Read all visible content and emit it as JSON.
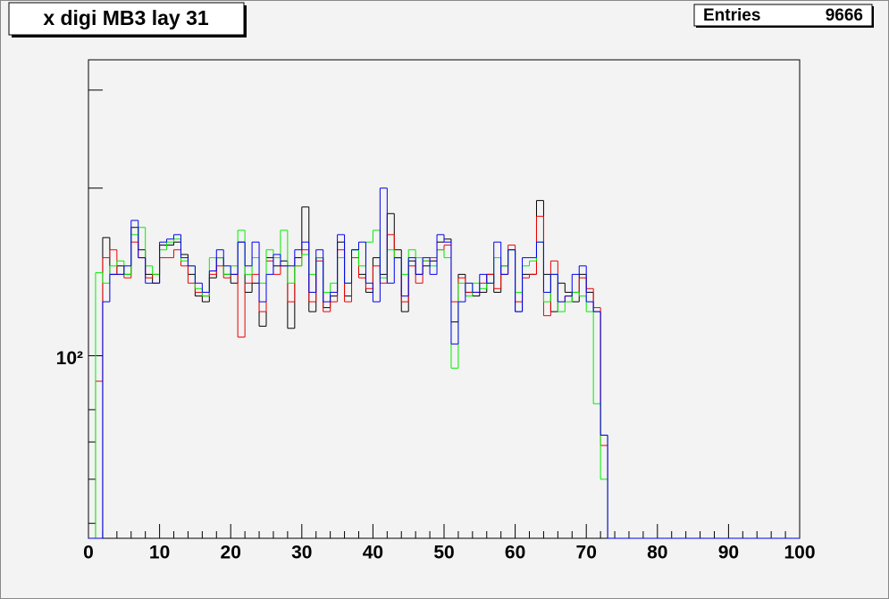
{
  "chart_data": {
    "type": "histogram",
    "title": "x digi MB3 lay 31",
    "stats": {
      "label": "Entries",
      "value": 9666
    },
    "bins": [
      0,
      1,
      2,
      3,
      4,
      5,
      6,
      7,
      8,
      9,
      10,
      11,
      12,
      13,
      14,
      15,
      16,
      17,
      18,
      19,
      20,
      21,
      22,
      23,
      24,
      25,
      26,
      27,
      28,
      29,
      30,
      31,
      32,
      33,
      34,
      35,
      36,
      37,
      38,
      39,
      40,
      41,
      42,
      43,
      44,
      45,
      46,
      47,
      48,
      49,
      50,
      51,
      52,
      53,
      54,
      55,
      56,
      57,
      58,
      59,
      60,
      61,
      62,
      63,
      64,
      65,
      66,
      67,
      68,
      69,
      70,
      71,
      72,
      73,
      74,
      75,
      76,
      77,
      78,
      79,
      80,
      81,
      82,
      83,
      84,
      85,
      86,
      87,
      88,
      89,
      90,
      91,
      92,
      93,
      94,
      95,
      96,
      97,
      98,
      99,
      100
    ],
    "series": [
      {
        "color": "#000000",
        "values": [
          0,
          0,
          163,
          140,
          145,
          140,
          170,
          155,
          140,
          135,
          158,
          158,
          160,
          152,
          140,
          128,
          125,
          138,
          150,
          140,
          135,
          160,
          130,
          135,
          113,
          150,
          145,
          148,
          112,
          150,
          185,
          120,
          150,
          122,
          128,
          160,
          128,
          155,
          140,
          130,
          150,
          140,
          180,
          155,
          120,
          148,
          140,
          145,
          148,
          160,
          162,
          115,
          140,
          130,
          128,
          130,
          140,
          130,
          145,
          155,
          120,
          140,
          140,
          190,
          140,
          120,
          135,
          130,
          125,
          140,
          130,
          120,
          72,
          0,
          0,
          0,
          0,
          0,
          0,
          0,
          0,
          0,
          0,
          0,
          0,
          0,
          0,
          0,
          0,
          0,
          0,
          0,
          0,
          0,
          0,
          0,
          0,
          0,
          0,
          0
        ]
      },
      {
        "color": "#ee0000",
        "values": [
          0,
          90,
          150,
          155,
          140,
          138,
          160,
          150,
          138,
          140,
          150,
          150,
          155,
          145,
          135,
          130,
          128,
          140,
          145,
          138,
          140,
          108,
          135,
          140,
          120,
          148,
          140,
          145,
          125,
          145,
          155,
          125,
          148,
          120,
          125,
          155,
          125,
          150,
          138,
          132,
          145,
          135,
          165,
          150,
          125,
          145,
          135,
          148,
          150,
          155,
          158,
          125,
          138,
          130,
          130,
          135,
          140,
          132,
          140,
          158,
          125,
          138,
          140,
          178,
          118,
          148,
          125,
          128,
          130,
          138,
          132,
          122,
          69,
          0,
          0,
          0,
          0,
          0,
          0,
          0,
          0,
          0,
          0,
          0,
          0,
          0,
          0,
          0,
          0,
          0,
          0,
          0,
          0,
          0,
          0,
          0,
          0,
          0,
          0,
          0
        ]
      },
      {
        "color": "#00ee00",
        "values": [
          0,
          141,
          135,
          145,
          148,
          140,
          165,
          170,
          145,
          140,
          155,
          160,
          162,
          148,
          145,
          132,
          128,
          150,
          150,
          140,
          145,
          168,
          140,
          150,
          135,
          155,
          150,
          168,
          135,
          145,
          152,
          140,
          150,
          130,
          135,
          150,
          135,
          155,
          145,
          160,
          168,
          138,
          155,
          150,
          140,
          155,
          150,
          148,
          145,
          155,
          150,
          95,
          135,
          128,
          135,
          132,
          135,
          150,
          145,
          155,
          130,
          145,
          148,
          160,
          125,
          140,
          120,
          125,
          130,
          128,
          120,
          82,
          60,
          0,
          0,
          0,
          0,
          0,
          0,
          0,
          0,
          0,
          0,
          0,
          0,
          0,
          0,
          0,
          0,
          0,
          0,
          0,
          0,
          0,
          0,
          0,
          0,
          0,
          0,
          0
        ]
      },
      {
        "color": "#0000ee",
        "values": [
          0,
          0,
          125,
          140,
          140,
          145,
          175,
          150,
          135,
          135,
          160,
          162,
          165,
          150,
          145,
          135,
          130,
          142,
          155,
          145,
          140,
          160,
          145,
          160,
          125,
          140,
          152,
          145,
          145,
          155,
          160,
          130,
          155,
          125,
          130,
          165,
          135,
          155,
          160,
          135,
          125,
          200,
          135,
          150,
          128,
          150,
          140,
          150,
          140,
          165,
          160,
          105,
          125,
          135,
          130,
          140,
          135,
          160,
          140,
          155,
          120,
          150,
          150,
          160,
          130,
          140,
          125,
          128,
          140,
          145,
          125,
          120,
          72,
          0,
          0,
          0,
          0,
          0,
          0,
          0,
          0,
          0,
          0,
          0,
          0,
          0,
          0,
          0,
          0,
          0,
          0,
          0,
          0,
          0,
          0,
          0,
          0,
          0,
          0,
          0
        ]
      }
    ],
    "xlim": [
      0,
      100
    ],
    "xticks": [
      0,
      10,
      20,
      30,
      40,
      50,
      60,
      70,
      80,
      90,
      100
    ],
    "xminorticks": [
      2,
      4,
      6,
      8,
      12,
      14,
      16,
      18,
      22,
      24,
      26,
      28,
      32,
      34,
      36,
      38,
      42,
      44,
      46,
      48,
      52,
      54,
      56,
      58,
      62,
      64,
      66,
      68,
      72,
      74,
      76,
      78,
      82,
      84,
      86,
      88,
      92,
      94,
      96,
      98
    ],
    "ylim": [
      47,
      340
    ],
    "log_y": true,
    "yticks": [
      {
        "value": 100,
        "label": "10²"
      }
    ],
    "ymajorticks": [
      200,
      300
    ],
    "yminorticks": [
      50,
      60,
      70,
      80
    ]
  }
}
